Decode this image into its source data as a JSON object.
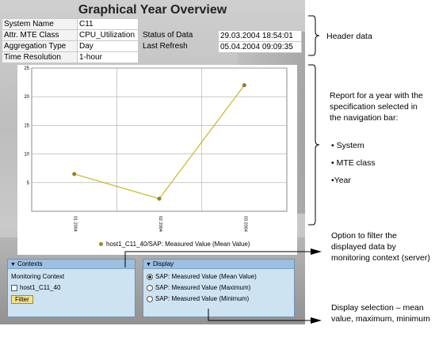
{
  "title": "Graphical Year Overview",
  "header": {
    "system_name_label": "System Name",
    "system_name_value": "C11",
    "mte_class_label": "Attr. MTE Class",
    "mte_class_value": "CPU_Utilization",
    "aggregation_label": "Aggregation Type",
    "aggregation_value": "Day",
    "time_res_label": "Time Resolution",
    "time_res_value": "1-hour",
    "status_label": "Status of Data",
    "status_value": "29.03.2004 18:54:01",
    "refresh_label": "Last Refresh",
    "refresh_value": "05.04.2004 09:09:35"
  },
  "chart_data": {
    "type": "line",
    "x": [
      "01 2004",
      "02 2004",
      "03 2004"
    ],
    "series": [
      {
        "name": "host1_C11_40/SAP: Measured Value (Mean Value)",
        "values": [
          6.5,
          2.2,
          22
        ],
        "color": "#c8b81e"
      }
    ],
    "yticks": [
      "5",
      "10",
      "15",
      "20",
      "25"
    ],
    "ylim": [
      0,
      25
    ],
    "grid": true
  },
  "contexts_panel": {
    "title": "Contexts",
    "section_label": "Monitoring Context",
    "checkbox_label": "host1_C11_40",
    "filter_button": "Filter"
  },
  "display_panel": {
    "title": "Display",
    "options": [
      "SAP: Measured Value (Mean Value)",
      "SAP: Measured Value (Maximum)",
      "SAP: Measured Value (Minimum)"
    ],
    "selected_index": 0
  },
  "annotations": {
    "header": "Header data",
    "report_intro": "Report for a year with the specification selected in the navigation bar:",
    "bullet_system": "• System",
    "bullet_mte": "• MTE class",
    "bullet_year": "•Year",
    "filter_note": "Option to filter the displayed data by monitoring context (server)",
    "display_note": "Display selection – mean value, maximum, minimum"
  }
}
